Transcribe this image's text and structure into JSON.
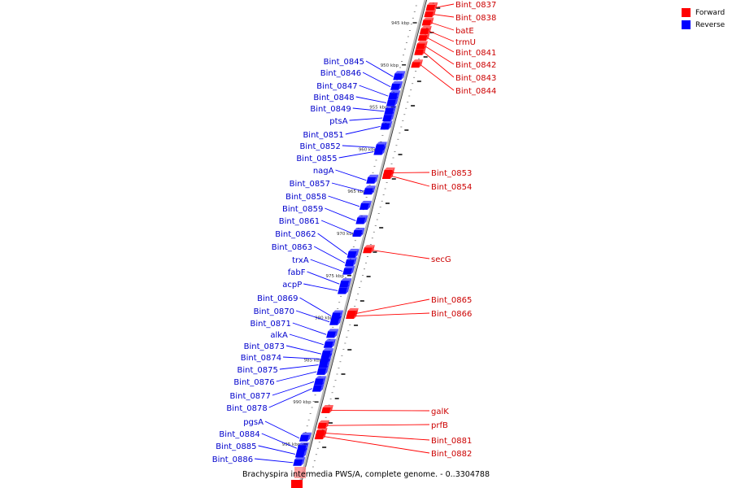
{
  "caption": "Brachyspira intermedia PWS/A, complete genome. - 0..3304788",
  "legend": [
    {
      "label": "Forward",
      "color": "#ff0000"
    },
    {
      "label": "Reverse",
      "color": "#0000ff"
    }
  ],
  "colors": {
    "forward": "#ff0000",
    "reverse": "#0000ff",
    "forward_label": "#cc0000",
    "reverse_label": "#0000cc",
    "backbone": "#888888"
  },
  "scale_labels": [
    {
      "text": "945 kbp",
      "kbp": 945
    },
    {
      "text": "950 kbp",
      "kbp": 950
    },
    {
      "text": "955 kbp",
      "kbp": 955
    },
    {
      "text": "960 kbp",
      "kbp": 960
    },
    {
      "text": "965 kbp",
      "kbp": 965
    },
    {
      "text": "970 kbp",
      "kbp": 970
    },
    {
      "text": "975 kbp",
      "kbp": 975
    },
    {
      "text": "980 kbp",
      "kbp": 980
    },
    {
      "text": "985 kbp",
      "kbp": 985
    },
    {
      "text": "990 kbp",
      "kbp": 990
    },
    {
      "text": "995 kbp",
      "kbp": 995
    }
  ],
  "forward_genes": [
    {
      "name": "Bint_0837",
      "kbp": 943.2
    },
    {
      "name": "Bint_0838",
      "kbp": 944.0
    },
    {
      "name": "batE",
      "kbp": 945.0
    },
    {
      "name": "trmU",
      "kbp": 946.0
    },
    {
      "name": "Bint_0841",
      "kbp": 946.8
    },
    {
      "name": "Bint_0842",
      "kbp": 947.8
    },
    {
      "name": "Bint_0843",
      "kbp": 948.5
    },
    {
      "name": "Bint_0844",
      "kbp": 950.0
    },
    {
      "name": "Bint_0853",
      "kbp": 962.8
    },
    {
      "name": "Bint_0854",
      "kbp": 963.2
    },
    {
      "name": "secG",
      "kbp": 972.0
    },
    {
      "name": "Bint_0865",
      "kbp": 979.5
    },
    {
      "name": "Bint_0866",
      "kbp": 979.8
    },
    {
      "name": "galK",
      "kbp": 991.0
    },
    {
      "name": "prfB",
      "kbp": 992.8
    },
    {
      "name": "Bint_0881",
      "kbp": 993.7
    },
    {
      "name": "Bint_0882",
      "kbp": 994.1
    }
  ],
  "reverse_genes": [
    {
      "name": "Bint_0845",
      "kbp": 951.4
    },
    {
      "name": "Bint_0846",
      "kbp": 952.6
    },
    {
      "name": "Bint_0847",
      "kbp": 953.7
    },
    {
      "name": "Bint_0848",
      "kbp": 954.5
    },
    {
      "name": "Bint_0849",
      "kbp": 955.5
    },
    {
      "name": "ptsA",
      "kbp": 956.3
    },
    {
      "name": "Bint_0851",
      "kbp": 957.3
    },
    {
      "name": "Bint_0852",
      "kbp": 959.8
    },
    {
      "name": "Bint_0855",
      "kbp": 960.3
    },
    {
      "name": "nagA",
      "kbp": 963.7
    },
    {
      "name": "Bint_0857",
      "kbp": 965.0
    },
    {
      "name": "Bint_0858",
      "kbp": 966.8
    },
    {
      "name": "Bint_0859",
      "kbp": 968.5
    },
    {
      "name": "Bint_0861",
      "kbp": 970.0
    },
    {
      "name": "Bint_0862",
      "kbp": 972.5
    },
    {
      "name": "Bint_0863",
      "kbp": 973.5
    },
    {
      "name": "trxA",
      "kbp": 974.5
    },
    {
      "name": "fabF",
      "kbp": 976.0
    },
    {
      "name": "acpP",
      "kbp": 976.8
    },
    {
      "name": "Bint_0869",
      "kbp": 979.8
    },
    {
      "name": "Bint_0870",
      "kbp": 980.5
    },
    {
      "name": "Bint_0871",
      "kbp": 982.0
    },
    {
      "name": "alkA",
      "kbp": 983.2
    },
    {
      "name": "Bint_0873",
      "kbp": 984.3
    },
    {
      "name": "Bint_0874",
      "kbp": 984.9
    },
    {
      "name": "Bint_0875",
      "kbp": 985.6
    },
    {
      "name": "Bint_0876",
      "kbp": 986.4
    },
    {
      "name": "Bint_0877",
      "kbp": 987.6
    },
    {
      "name": "Bint_0878",
      "kbp": 988.4
    },
    {
      "name": "pgsA",
      "kbp": 994.3
    },
    {
      "name": "Bint_0884",
      "kbp": 995.5
    },
    {
      "name": "Bint_0885",
      "kbp": 996.2
    },
    {
      "name": "Bint_0886",
      "kbp": 997.2
    }
  ]
}
